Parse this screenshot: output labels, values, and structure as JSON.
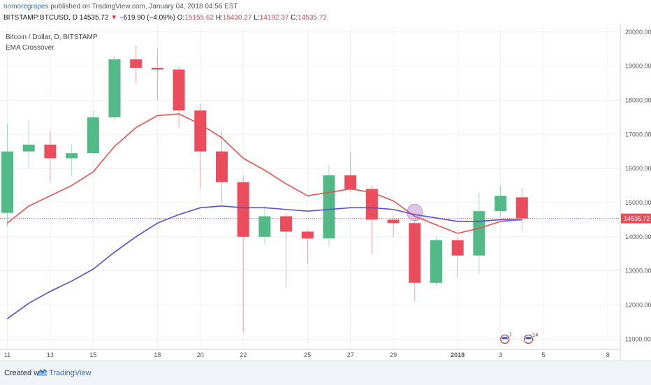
{
  "header": {
    "author": "nomoregrapes",
    "published": "published on TradingView.com, January 04, 2018 04:56 EST",
    "symbol": "BITSTAMP:BTCUSD, D",
    "last": "14535.72",
    "arrow": "▼",
    "change": "−619.90 (−4.09%)",
    "o_label": "O:",
    "o_val": "15155.62",
    "h_label": "H:",
    "h_val": "15430.27",
    "l_label": "L:",
    "l_val": "14192.37",
    "c_label": "C:",
    "c_val": "14535.72"
  },
  "legend": {
    "title": "Bitcoin / Dollar, D, BITSTAMP",
    "indicator": "EMA Crossover"
  },
  "footer": {
    "created": "Created with",
    "brand": "TradingView"
  },
  "colors": {
    "up": "#53b987",
    "down": "#eb4d5c",
    "ema_fast": "#e8524f",
    "ema_slow": "#5150d6",
    "price_tag": "#eb4d5c",
    "grid": "#eef0f3"
  },
  "chart_data": {
    "type": "candlestick",
    "ylim": [
      10700,
      20200
    ],
    "yticks": [
      "20000.00",
      "19000.00",
      "18000.00",
      "17000.00",
      "16000.00",
      "15000.00",
      "14000.00",
      "13000.00",
      "12000.00",
      "11000.00"
    ],
    "ytick_values": [
      20000,
      19000,
      18000,
      17000,
      16000,
      15000,
      14000,
      13000,
      12000,
      11000
    ],
    "xticks": [
      "11",
      "13",
      "15",
      "18",
      "20",
      "22",
      "25",
      "27",
      "29",
      "2018",
      "3",
      "5",
      "8"
    ],
    "last_price_label": "14535.72",
    "last_price": 14535.72,
    "candles": [
      {
        "o": 14700,
        "h": 17300,
        "l": 14300,
        "c": 16500
      },
      {
        "o": 16500,
        "h": 17400,
        "l": 16000,
        "c": 16700
      },
      {
        "o": 16700,
        "h": 17100,
        "l": 15600,
        "c": 16300
      },
      {
        "o": 16300,
        "h": 16700,
        "l": 15800,
        "c": 16450
      },
      {
        "o": 16450,
        "h": 17700,
        "l": 16400,
        "c": 17500
      },
      {
        "o": 17500,
        "h": 19300,
        "l": 17400,
        "c": 19200
      },
      {
        "o": 19200,
        "h": 19600,
        "l": 18500,
        "c": 18950
      },
      {
        "o": 18950,
        "h": 19500,
        "l": 18000,
        "c": 18900
      },
      {
        "o": 18900,
        "h": 19000,
        "l": 17200,
        "c": 17700
      },
      {
        "o": 17700,
        "h": 17900,
        "l": 15400,
        "c": 16500
      },
      {
        "o": 16500,
        "h": 17100,
        "l": 15000,
        "c": 15600
      },
      {
        "o": 15600,
        "h": 15800,
        "l": 11200,
        "c": 14000
      },
      {
        "o": 14000,
        "h": 14900,
        "l": 13800,
        "c": 14600
      },
      {
        "o": 14600,
        "h": 14700,
        "l": 12500,
        "c": 14150
      },
      {
        "o": 14150,
        "h": 14200,
        "l": 13200,
        "c": 13950
      },
      {
        "o": 13950,
        "h": 16100,
        "l": 13700,
        "c": 15800
      },
      {
        "o": 15800,
        "h": 16500,
        "l": 15300,
        "c": 15400
      },
      {
        "o": 15400,
        "h": 15500,
        "l": 13500,
        "c": 14500
      },
      {
        "o": 14500,
        "h": 14600,
        "l": 14000,
        "c": 14400
      },
      {
        "o": 14400,
        "h": 14500,
        "l": 12100,
        "c": 12650
      },
      {
        "o": 12650,
        "h": 14000,
        "l": 12550,
        "c": 13900
      },
      {
        "o": 13900,
        "h": 14000,
        "l": 12800,
        "c": 13450
      },
      {
        "o": 13450,
        "h": 15300,
        "l": 12900,
        "c": 14750
      },
      {
        "o": 14750,
        "h": 15500,
        "l": 14600,
        "c": 15200
      },
      {
        "o": 15155.62,
        "h": 15430.27,
        "l": 14192.37,
        "c": 14535.72
      }
    ],
    "series": [
      {
        "name": "EMA fast",
        "color": "#e8524f",
        "values": [
          14400,
          14900,
          15200,
          15500,
          15900,
          16650,
          17200,
          17550,
          17600,
          17300,
          16900,
          16300,
          15950,
          15550,
          15200,
          15300,
          15400,
          15300,
          15050,
          14600,
          14350,
          14100,
          14250,
          14450,
          14500
        ]
      },
      {
        "name": "EMA slow",
        "color": "#5150d6",
        "values": [
          11600,
          12050,
          12400,
          12700,
          13050,
          13550,
          14000,
          14400,
          14650,
          14850,
          14900,
          14850,
          14850,
          14800,
          14750,
          14800,
          14850,
          14850,
          14800,
          14650,
          14550,
          14450,
          14450,
          14500,
          14500
        ]
      }
    ],
    "crossover_index": 19,
    "event_badges": [
      {
        "label": "7"
      },
      {
        "label": "14"
      }
    ]
  }
}
